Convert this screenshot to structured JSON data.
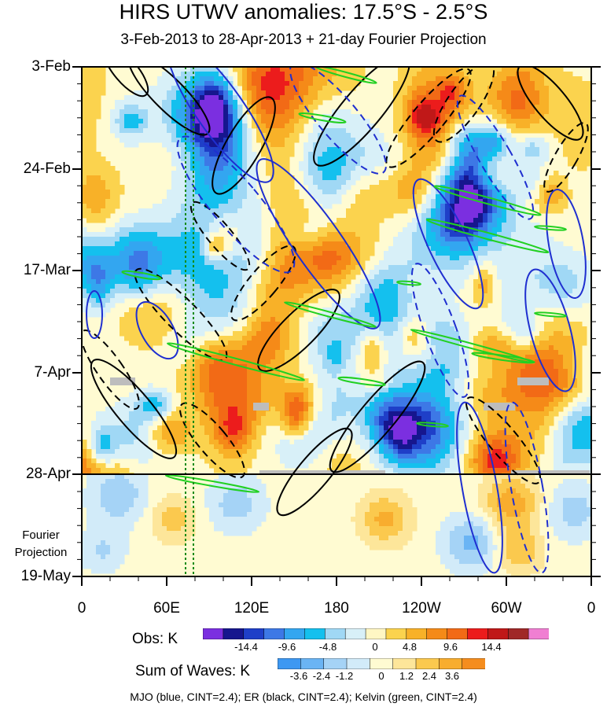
{
  "chart_data": {
    "type": "heatmap",
    "title": "HIRS UTWV anomalies: 17.5°S - 2.5°S",
    "subtitle": "3-Feb-2013 to 28-Apr-2013 + 21-day Fourier Projection",
    "xlabel": "",
    "ylabel": "",
    "x_ticks": [
      "0",
      "60E",
      "120E",
      "180",
      "120W",
      "60W",
      "0"
    ],
    "y_ticks": [
      "3-Feb",
      "24-Feb",
      "17-Mar",
      "7-Apr",
      "28-Apr",
      "19-May"
    ],
    "projection_label": [
      "Fourier",
      "Projection"
    ],
    "colorbars": [
      {
        "label": "Obs: K",
        "ticks": [
          "-14.4",
          "-9.6",
          "-4.8",
          "0",
          "4.8",
          "9.6",
          "14.4"
        ],
        "colors": [
          "#7b2fe0",
          "#16168e",
          "#1f3fc8",
          "#3d78e6",
          "#33a6f0",
          "#14c0ee",
          "#a0d8f5",
          "#d8f0f8",
          "#fff7c4",
          "#fbd34e",
          "#f8b128",
          "#f58a18",
          "#f26a16",
          "#ec1c1c",
          "#c01818",
          "#a02828",
          "#f07fd2"
        ]
      },
      {
        "label": "Sum of Waves: K",
        "ticks": [
          "-3.6",
          "-2.4",
          "-1.2",
          "0",
          "1.2",
          "2.4",
          "3.6"
        ],
        "colors": [
          "#3d98f2",
          "#6ab4f4",
          "#a5d3f6",
          "#d2ebf9",
          "#fffbd2",
          "#fde69a",
          "#fbc94e",
          "#f8ad2e",
          "#f58d1e"
        ]
      }
    ],
    "legend_text": "MJO (blue, CINT=2.4); ER (black, CINT=2.4); Kelvin (green, CINT=2.4)"
  }
}
